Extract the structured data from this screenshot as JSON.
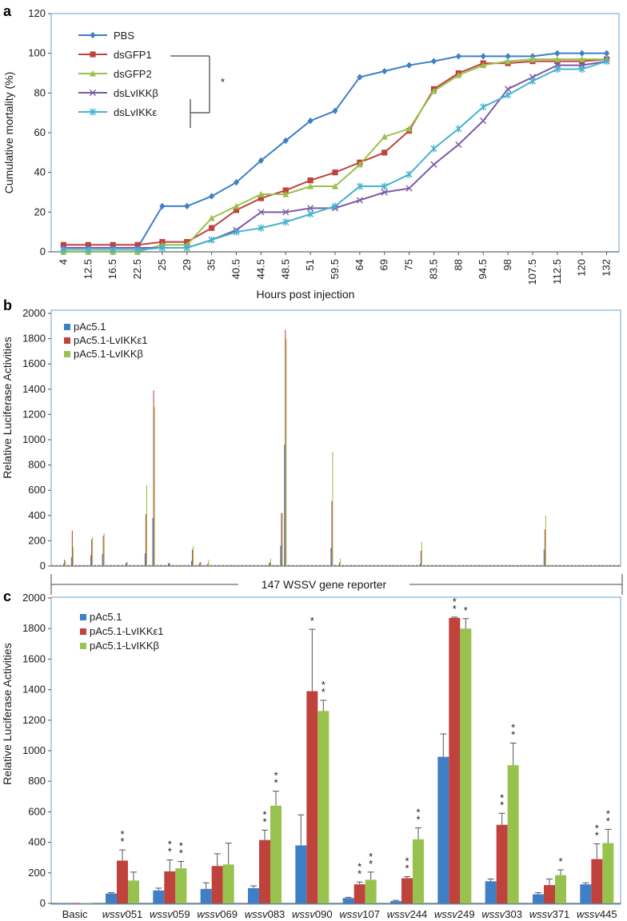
{
  "colors": {
    "blue": "#3f7fc6",
    "red": "#c0423d",
    "green": "#98c24e",
    "purple": "#7b5aa6",
    "cyan": "#45b3cf",
    "frame": "#7fb0d9"
  },
  "chart_data": [
    {
      "panel": "a",
      "type": "line",
      "xlabel": "Hours post injection",
      "ylabel": "Cumulative mortality (%)",
      "ylim": [
        0,
        120
      ],
      "yticks": [
        0,
        20,
        40,
        60,
        80,
        100,
        120
      ],
      "categories": [
        "4",
        "12.5",
        "16.5",
        "22.5",
        "25",
        "29",
        "35",
        "40.5",
        "44.5",
        "48.5",
        "51",
        "59.5",
        "64",
        "69",
        "75",
        "83.5",
        "88",
        "94.5",
        "98",
        "107.5",
        "112.5",
        "120",
        "132"
      ],
      "legend_position": "top-left",
      "significance_mark": "*",
      "series": [
        {
          "name": "PBS",
          "color": "#3f7fc6",
          "marker": "diamond",
          "values": [
            2,
            2,
            2,
            2,
            23,
            23,
            28,
            35,
            46,
            56,
            66,
            71,
            88,
            91,
            94,
            96,
            98.5,
            98.5,
            98.5,
            98.5,
            100,
            100,
            100
          ]
        },
        {
          "name": "dsGFP1",
          "color": "#c0423d",
          "marker": "square",
          "values": [
            3.5,
            3.5,
            3.5,
            3.5,
            5,
            5,
            12,
            21,
            27,
            31,
            36,
            40,
            45,
            50,
            61,
            82,
            90,
            95,
            95,
            96,
            96,
            96,
            97
          ]
        },
        {
          "name": "dsGFP2",
          "color": "#98c24e",
          "marker": "triangle",
          "values": [
            0,
            0,
            0,
            0,
            3.5,
            3.5,
            17,
            23,
            29,
            29,
            33,
            33,
            44,
            58,
            62,
            81,
            89,
            94,
            96,
            97,
            97,
            97,
            97
          ]
        },
        {
          "name": "dsLvIKKβ",
          "color": "#7b5aa6",
          "marker": "x",
          "values": [
            2,
            2,
            2,
            2,
            2,
            2,
            6,
            11,
            20,
            20,
            22,
            22,
            26,
            30,
            32,
            44,
            54,
            66,
            82,
            88,
            94,
            94,
            96
          ]
        },
        {
          "name": "dsLvIKKε",
          "color": "#45b3cf",
          "marker": "star",
          "values": [
            1,
            1,
            1,
            1,
            2,
            2,
            6,
            10,
            12,
            15,
            19,
            23,
            33,
            33,
            39,
            52,
            62,
            73,
            79,
            86,
            92,
            92,
            96
          ]
        }
      ]
    },
    {
      "panel": "b",
      "type": "bar",
      "ylabel": "Relative Luciferase Activities",
      "ylim": [
        0,
        2000
      ],
      "yticks": [
        0,
        200,
        400,
        600,
        800,
        1000,
        1200,
        1400,
        1600,
        1800,
        2000
      ],
      "n_categories": 147,
      "category_label": "147 WSSV gene reporter",
      "legend_position": "top-left",
      "series_names": [
        "pAc5.1",
        "pAc5.1-LvIKKε1",
        "pAc5.1-LvIKKβ"
      ],
      "series_colors": [
        "#3f7fc6",
        "#c0423d",
        "#98c24e"
      ],
      "baseline": 8,
      "peaks": [
        {
          "index": 3,
          "values": [
            20,
            50,
            40
          ]
        },
        {
          "index": 5,
          "values": [
            70,
            280,
            150
          ]
        },
        {
          "index": 10,
          "values": [
            85,
            210,
            230
          ]
        },
        {
          "index": 13,
          "values": [
            95,
            240,
            260
          ]
        },
        {
          "index": 19,
          "values": [
            20,
            30,
            30
          ]
        },
        {
          "index": 24,
          "values": [
            100,
            410,
            640
          ]
        },
        {
          "index": 26,
          "values": [
            380,
            1390,
            1260
          ]
        },
        {
          "index": 30,
          "values": [
            20,
            25,
            20
          ]
        },
        {
          "index": 36,
          "values": [
            40,
            130,
            160
          ]
        },
        {
          "index": 38,
          "values": [
            20,
            30,
            30
          ]
        },
        {
          "index": 40,
          "values": [
            10,
            20,
            50
          ]
        },
        {
          "index": 56,
          "values": [
            20,
            30,
            60
          ]
        },
        {
          "index": 59,
          "values": [
            160,
            420,
            420
          ]
        },
        {
          "index": 60,
          "values": [
            960,
            1870,
            1800
          ]
        },
        {
          "index": 72,
          "values": [
            145,
            515,
            905
          ]
        },
        {
          "index": 74,
          "values": [
            10,
            30,
            60
          ]
        },
        {
          "index": 95,
          "values": [
            20,
            120,
            190
          ]
        },
        {
          "index": 127,
          "values": [
            130,
            290,
            400
          ]
        }
      ]
    },
    {
      "panel": "c",
      "type": "bar",
      "ylabel": "Relative Luciferase Activities",
      "ylim": [
        0,
        2000
      ],
      "yticks": [
        0,
        200,
        400,
        600,
        800,
        1000,
        1200,
        1400,
        1600,
        1800,
        2000
      ],
      "legend_position": "top-left",
      "categories": [
        {
          "italic": "",
          "rest": "Basic"
        },
        {
          "italic": "wssv",
          "rest": "051"
        },
        {
          "italic": "wssv",
          "rest": "059"
        },
        {
          "italic": "wssv",
          "rest": "069"
        },
        {
          "italic": "wssv",
          "rest": "083"
        },
        {
          "italic": "wssv",
          "rest": "090"
        },
        {
          "italic": "wssv",
          "rest": "107"
        },
        {
          "italic": "wssv",
          "rest": "244"
        },
        {
          "italic": "wssv",
          "rest": "249"
        },
        {
          "italic": "wssv",
          "rest": "303"
        },
        {
          "italic": "wssv",
          "rest": "371"
        },
        {
          "italic": "wssv",
          "rest": "445"
        }
      ],
      "series": [
        {
          "name": "pAc5.1",
          "color": "#3f7fc6",
          "values": [
            2,
            65,
            85,
            95,
            100,
            380,
            35,
            15,
            960,
            145,
            60,
            125
          ],
          "errors": [
            0,
            5,
            15,
            40,
            15,
            200,
            5,
            5,
            150,
            15,
            10,
            10
          ],
          "stars": [
            "",
            "",
            "",
            "",
            "",
            "",
            "",
            "",
            "",
            "",
            "",
            ""
          ]
        },
        {
          "name": "pAc5.1-LvIKKε1",
          "color": "#c0423d",
          "values": [
            2,
            280,
            210,
            245,
            415,
            1390,
            125,
            165,
            1870,
            515,
            120,
            290
          ],
          "errors": [
            0,
            70,
            75,
            80,
            65,
            405,
            15,
            10,
            5,
            75,
            40,
            100
          ],
          "stars": [
            "",
            "**",
            "**",
            "",
            "**",
            "*",
            "**",
            "**",
            "**",
            "**",
            "",
            "**"
          ]
        },
        {
          "name": "pAc5.1-LvIKKβ",
          "color": "#98c24e",
          "values": [
            2,
            150,
            230,
            255,
            640,
            1260,
            155,
            420,
            1800,
            905,
            185,
            395
          ],
          "errors": [
            0,
            55,
            45,
            140,
            95,
            70,
            50,
            75,
            65,
            145,
            35,
            90
          ],
          "stars": [
            "",
            "",
            "**",
            "",
            "**",
            "**",
            "**",
            "**",
            "*",
            "**",
            "*",
            "**"
          ]
        }
      ]
    }
  ]
}
